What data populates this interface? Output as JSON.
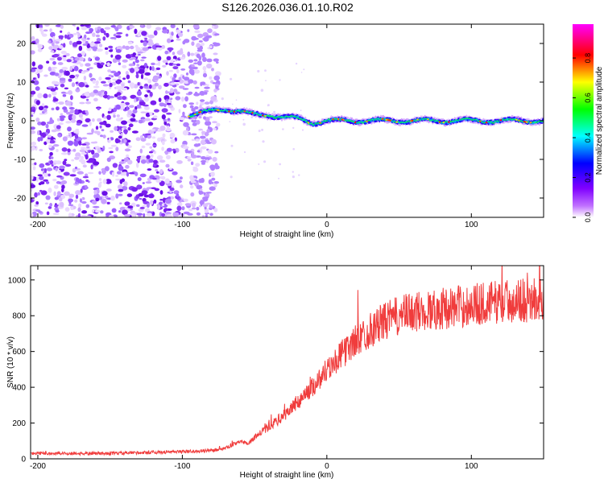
{
  "title": "S126.2026.036.01.10.R02",
  "chart_data": [
    {
      "type": "heatmap",
      "title": "S126.2026.036.01.10.R02",
      "xlabel": "Height of straight line (km)",
      "ylabel": "Frequency (Hz)",
      "xlim": [
        -205,
        150
      ],
      "ylim": [
        -25,
        25
      ],
      "xticks": [
        -200,
        -100,
        0,
        100
      ],
      "yticks": [
        -20,
        -10,
        0,
        10,
        20
      ],
      "colorbar": {
        "label": "Normalized spectral amplitude",
        "range": [
          0,
          0.97
        ],
        "ticks": [
          0.0,
          0.2,
          0.4,
          0.6,
          0.8
        ],
        "colors": [
          "#ffffff",
          "#8000ff",
          "#0000ff",
          "#00ffff",
          "#00ff00",
          "#ffff00",
          "#ff0000",
          "#ff00ff"
        ]
      },
      "noise_region_km": [
        -205,
        -75
      ],
      "signal_trace": {
        "x": [
          -95,
          -80,
          -70,
          -60,
          -50,
          -40,
          -30,
          -20,
          -10,
          0,
          20,
          40,
          60,
          80,
          100,
          120,
          150
        ],
        "freq_hz": [
          1.5,
          2.5,
          3.0,
          2.5,
          1.5,
          1.5,
          1.0,
          0.5,
          -0.5,
          0.0,
          0.0,
          0.0,
          0.0,
          0.0,
          0.0,
          0.0,
          0.0
        ]
      }
    },
    {
      "type": "line",
      "xlabel": "Height of straight line (km)",
      "ylabel": "SNR (10 * v/v)",
      "xlim": [
        -205,
        150
      ],
      "ylim": [
        0,
        1080
      ],
      "xticks": [
        -200,
        -100,
        0,
        100
      ],
      "yticks": [
        0,
        200,
        400,
        600,
        800,
        1000
      ],
      "series": [
        {
          "name": "SNR",
          "color": "#f03c3c",
          "x": [
            -205,
            -150,
            -100,
            -80,
            -70,
            -60,
            -55,
            -50,
            -45,
            -40,
            -35,
            -30,
            -20,
            -10,
            0,
            10,
            20,
            30,
            40,
            50,
            60,
            80,
            100,
            120,
            150
          ],
          "y": [
            30,
            30,
            40,
            45,
            60,
            100,
            80,
            120,
            150,
            180,
            210,
            240,
            320,
            400,
            500,
            580,
            660,
            720,
            770,
            800,
            820,
            840,
            860,
            880,
            890
          ]
        }
      ]
    }
  ]
}
